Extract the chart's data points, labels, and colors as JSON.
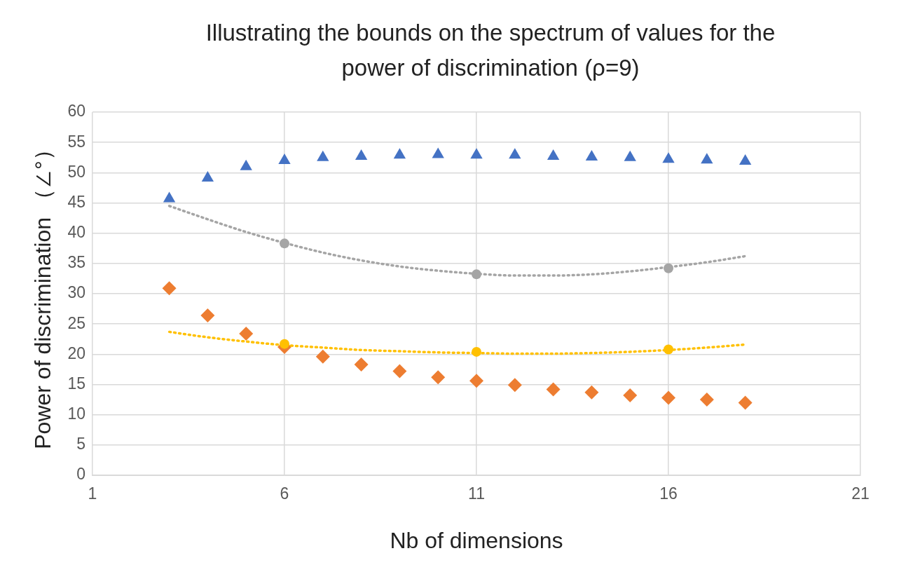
{
  "chart_data": {
    "type": "scatter",
    "title": "Illustrating the bounds on the spectrum of values for the power of discrimination  (ρ=9)",
    "xlabel": "Nb of dimensions",
    "ylabel": "Power of discrimination （∠°）",
    "xlim": [
      1,
      21
    ],
    "xticks": [
      1,
      6,
      11,
      16,
      21
    ],
    "ylim": [
      0,
      60
    ],
    "yticks": [
      0,
      5,
      10,
      15,
      20,
      25,
      30,
      35,
      40,
      45,
      50,
      55,
      60
    ],
    "grid": true,
    "legend": false,
    "series": [
      {
        "type": "scatter",
        "color": "#4472c4",
        "marker": "triangle",
        "x": [
          3,
          4,
          5,
          6,
          7,
          8,
          9,
          10,
          11,
          12,
          13,
          14,
          15,
          16,
          17,
          18
        ],
        "values": [
          45.7,
          49.1,
          51.0,
          52.0,
          52.5,
          52.7,
          52.9,
          53.0,
          52.9,
          52.9,
          52.7,
          52.6,
          52.5,
          52.2,
          52.1,
          51.9
        ]
      },
      {
        "type": "scatter",
        "color": "#ed7d31",
        "marker": "diamond",
        "x": [
          3,
          4,
          5,
          6,
          7,
          8,
          9,
          10,
          11,
          12,
          13,
          14,
          15,
          16,
          17,
          18
        ],
        "values": [
          30.9,
          26.4,
          23.4,
          21.2,
          19.6,
          18.3,
          17.2,
          16.2,
          15.6,
          14.9,
          14.2,
          13.7,
          13.2,
          12.8,
          12.5,
          12.0
        ]
      },
      {
        "type": "line",
        "color": "#a5a5a5",
        "marker": "none",
        "line_style": "dotted",
        "x": [
          3,
          4,
          5,
          6,
          7,
          8,
          9,
          10,
          11,
          12,
          13,
          14,
          15,
          16,
          17,
          18
        ],
        "values": [
          44.5,
          42.3,
          40.2,
          38.4,
          36.8,
          35.5,
          34.5,
          33.8,
          33.3,
          33.0,
          33.0,
          33.2,
          33.7,
          34.4,
          35.2,
          36.2
        ]
      },
      {
        "type": "line",
        "color": "#ffc000",
        "marker": "none",
        "line_style": "dotted",
        "x": [
          3,
          4,
          5,
          6,
          7,
          8,
          9,
          10,
          11,
          12,
          13,
          14,
          15,
          16,
          17,
          18
        ],
        "values": [
          23.7,
          22.8,
          22.1,
          21.5,
          21.1,
          20.7,
          20.5,
          20.3,
          20.2,
          20.1,
          20.1,
          20.2,
          20.4,
          20.7,
          21.1,
          21.6
        ]
      },
      {
        "type": "scatter",
        "color": "#a5a5a5",
        "marker": "circle",
        "x": [
          6,
          11,
          16
        ],
        "values": [
          38.3,
          33.2,
          34.2
        ]
      },
      {
        "type": "scatter",
        "color": "#ffc000",
        "marker": "circle",
        "x": [
          6,
          11,
          16
        ],
        "values": [
          21.7,
          20.4,
          20.8
        ]
      }
    ]
  }
}
